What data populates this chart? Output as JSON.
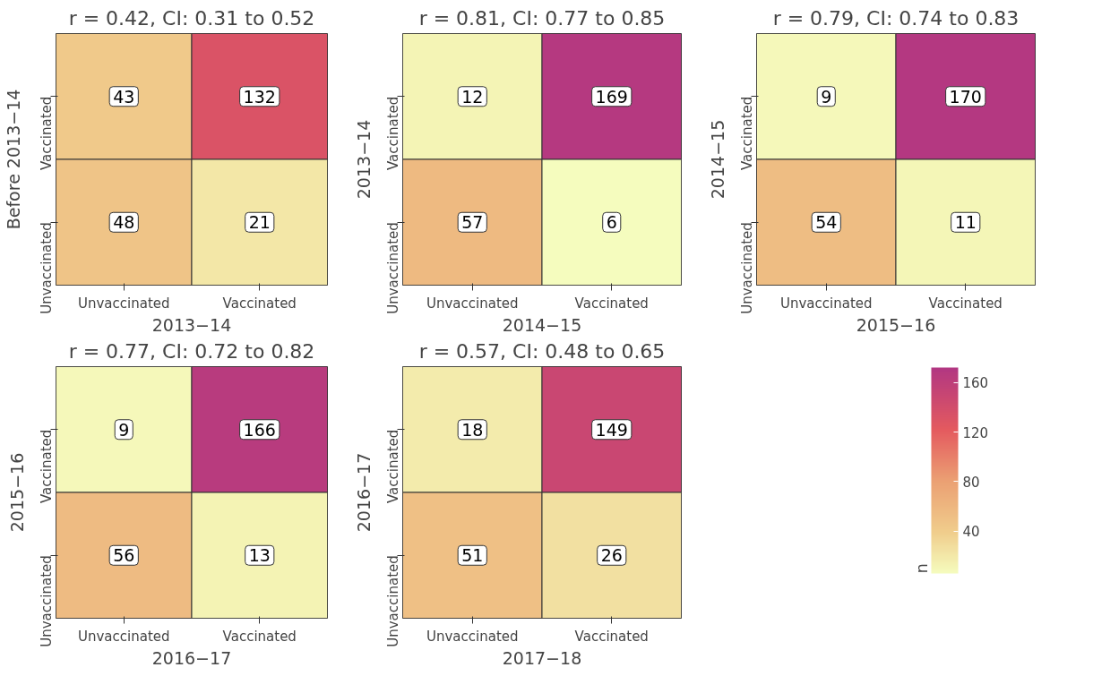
{
  "chart_data": [
    {
      "type": "heatmap",
      "title": "r = 0.42, CI: 0.31 to 0.52",
      "xlabel": "2013−14",
      "ylabel": "Before 2013−14",
      "categories": [
        "Unvaccinated",
        "Vaccinated"
      ],
      "y_categories": [
        "Vaccinated",
        "Unvaccinated"
      ],
      "cells": [
        [
          43,
          132
        ],
        [
          48,
          21
        ]
      ],
      "data_labels": true
    },
    {
      "type": "heatmap",
      "title": "r = 0.81, CI: 0.77 to 0.85",
      "xlabel": "2014−15",
      "ylabel": "2013−14",
      "categories": [
        "Unvaccinated",
        "Vaccinated"
      ],
      "y_categories": [
        "Vaccinated",
        "Unvaccinated"
      ],
      "cells": [
        [
          12,
          169
        ],
        [
          57,
          6
        ]
      ],
      "data_labels": true
    },
    {
      "type": "heatmap",
      "title": "r = 0.79, CI: 0.74 to 0.83",
      "xlabel": "2015−16",
      "ylabel": "2014−15",
      "categories": [
        "Unvaccinated",
        "Vaccinated"
      ],
      "y_categories": [
        "Vaccinated",
        "Unvaccinated"
      ],
      "cells": [
        [
          9,
          170
        ],
        [
          54,
          11
        ]
      ],
      "data_labels": true
    },
    {
      "type": "heatmap",
      "title": "r = 0.77, CI: 0.72 to 0.82",
      "xlabel": "2016−17",
      "ylabel": "2015−16",
      "categories": [
        "Unvaccinated",
        "Vaccinated"
      ],
      "y_categories": [
        "Vaccinated",
        "Unvaccinated"
      ],
      "cells": [
        [
          9,
          166
        ],
        [
          56,
          13
        ]
      ],
      "data_labels": true
    },
    {
      "type": "heatmap",
      "title": "r = 0.57, CI: 0.48 to 0.65",
      "xlabel": "2017−18",
      "ylabel": "2016−17",
      "categories": [
        "Unvaccinated",
        "Vaccinated"
      ],
      "y_categories": [
        "Vaccinated",
        "Unvaccinated"
      ],
      "cells": [
        [
          18,
          149
        ],
        [
          51,
          26
        ]
      ],
      "data_labels": true,
      "clim": [
        6,
        172
      ],
      "clabel": "n",
      "cticks": [
        40,
        80,
        120,
        160
      ]
    }
  ]
}
